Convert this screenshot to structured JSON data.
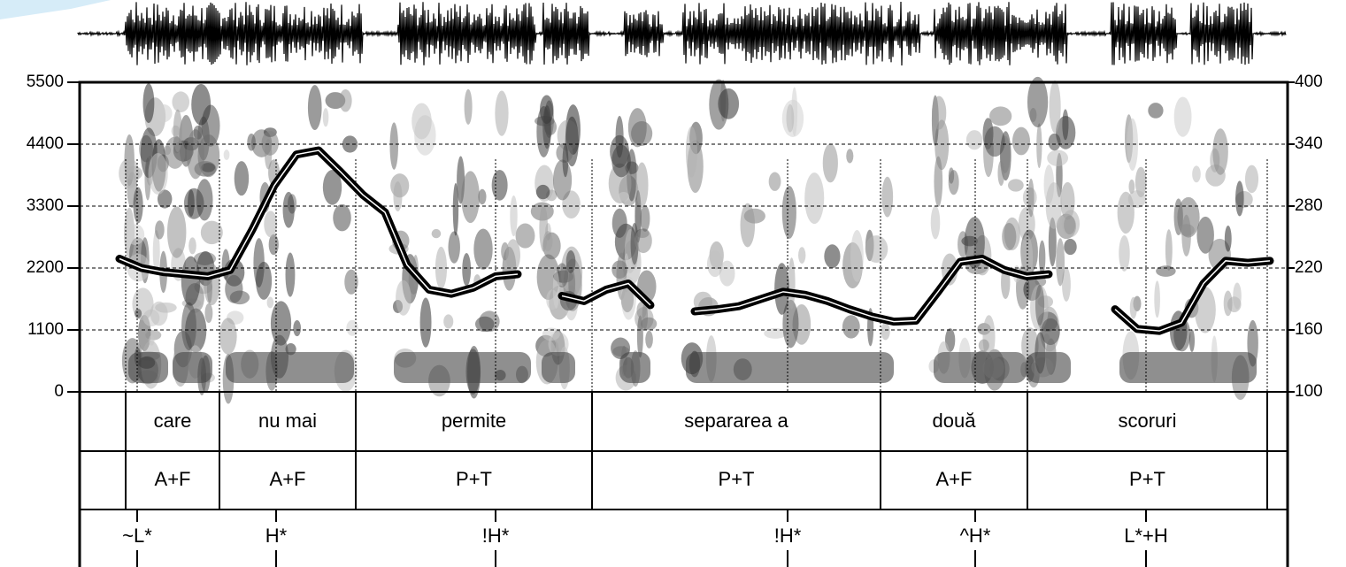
{
  "chart_data": {
    "type": "line",
    "ylim": [
      0,
      5500
    ],
    "yticks": [
      0,
      1100,
      2200,
      3300,
      4400,
      5500
    ],
    "y2lim": [
      100,
      400
    ],
    "y2ticks": [
      100,
      160,
      220,
      280,
      340,
      400
    ],
    "grid": true,
    "series": [
      {
        "color": "#000000",
        "axis": "y2",
        "values": [
          229,
          220,
          216,
          214,
          212,
          218,
          257,
          300,
          330,
          334,
          313,
          291,
          274,
          223,
          199,
          195,
          201,
          212,
          214,
          null,
          193,
          188,
          199,
          205,
          184,
          null,
          178,
          180,
          183,
          190,
          197,
          194,
          188,
          180,
          173,
          168,
          169,
          197,
          226,
          229,
          218,
          212,
          214,
          null,
          null,
          180,
          161,
          159,
          167,
          205,
          227,
          225,
          227
        ]
      }
    ],
    "tiers": {
      "words": [
        "care",
        "nu mai",
        "permite",
        "separarea a",
        "două",
        "scoruri"
      ],
      "labels": [
        "A+F",
        "A+F",
        "P+T",
        "P+T",
        "A+F",
        "P+T"
      ],
      "tones": [
        "~L*",
        "H*",
        "!H*",
        "!H*",
        "^H*",
        "L*+H"
      ]
    }
  }
}
